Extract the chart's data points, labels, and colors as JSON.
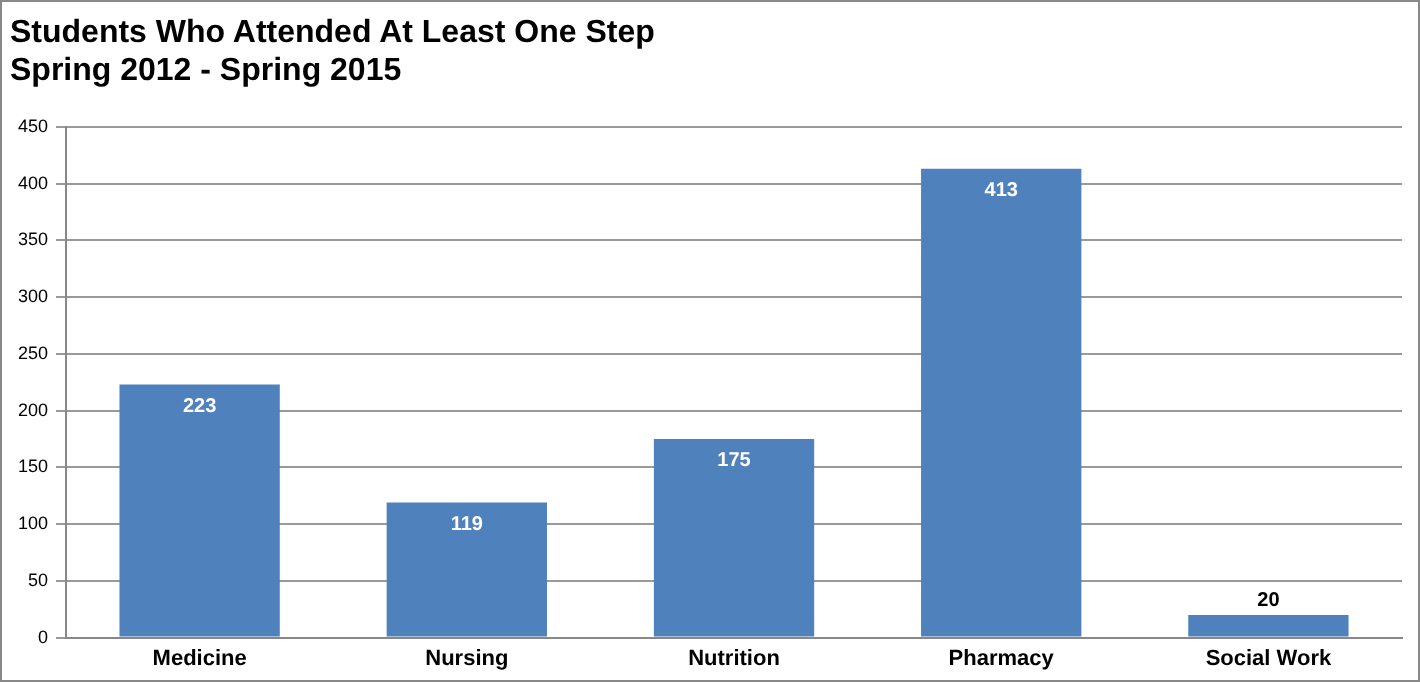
{
  "chart_data": {
    "type": "bar",
    "title": "Students Who Attended At Least One Step",
    "subtitle": "Spring 2012 - Spring 2015",
    "categories": [
      "Medicine",
      "Nursing",
      "Nutrition",
      "Pharmacy",
      "Social Work"
    ],
    "values": [
      223,
      119,
      175,
      413,
      20
    ],
    "color": "#4f81bd",
    "ylim": [
      0,
      450
    ],
    "yticks": [
      0,
      50,
      100,
      150,
      200,
      250,
      300,
      350,
      400,
      450
    ],
    "grid": "y",
    "data_labels": true,
    "legend": false
  }
}
